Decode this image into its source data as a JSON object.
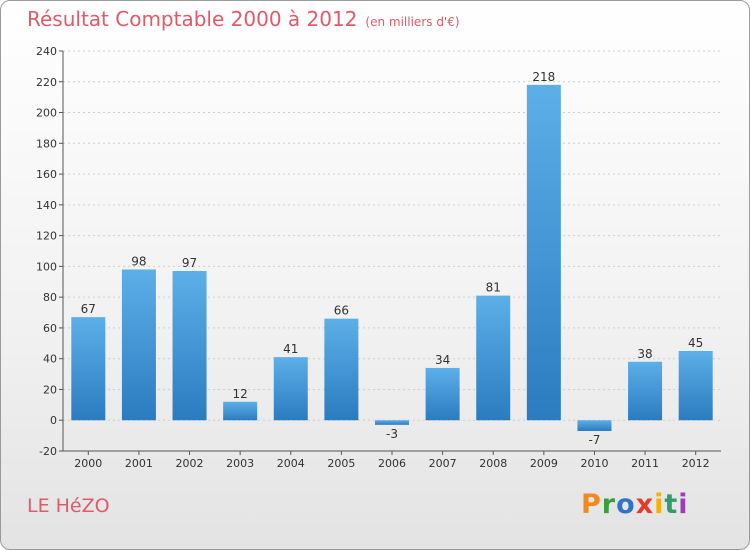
{
  "header": {
    "title": "Résultat Comptable 2000 à 2012",
    "subtitle": "(en milliers d'€)"
  },
  "footer": {
    "commune": "LE HéZO",
    "logo_letters": [
      "P",
      "r",
      "o",
      "x",
      "i",
      "t",
      "i"
    ]
  },
  "chart_data": {
    "type": "bar",
    "categories": [
      "2000",
      "2001",
      "2002",
      "2003",
      "2004",
      "2005",
      "2006",
      "2007",
      "2008",
      "2009",
      "2010",
      "2011",
      "2012"
    ],
    "values": [
      67,
      98,
      97,
      12,
      41,
      66,
      -3,
      34,
      81,
      218,
      -7,
      38,
      45
    ],
    "data_labels": [
      "67",
      "98",
      "97",
      "12",
      "41",
      "66",
      "-3",
      "34",
      "81",
      "218",
      "-7",
      "38",
      "45"
    ],
    "title": "Résultat Comptable 2000 à 2012",
    "subtitle": "(en milliers d'€)",
    "ylim": [
      -20,
      240
    ],
    "yticks": [
      -20,
      0,
      20,
      40,
      60,
      80,
      100,
      120,
      140,
      160,
      180,
      200,
      220,
      240
    ],
    "grid": true,
    "legend": "none",
    "colors": {
      "bar_top": "#5dafe8",
      "bar_bottom": "#2a7cc0",
      "title": "#e05a6a",
      "grid": "#cfcfcf"
    }
  }
}
